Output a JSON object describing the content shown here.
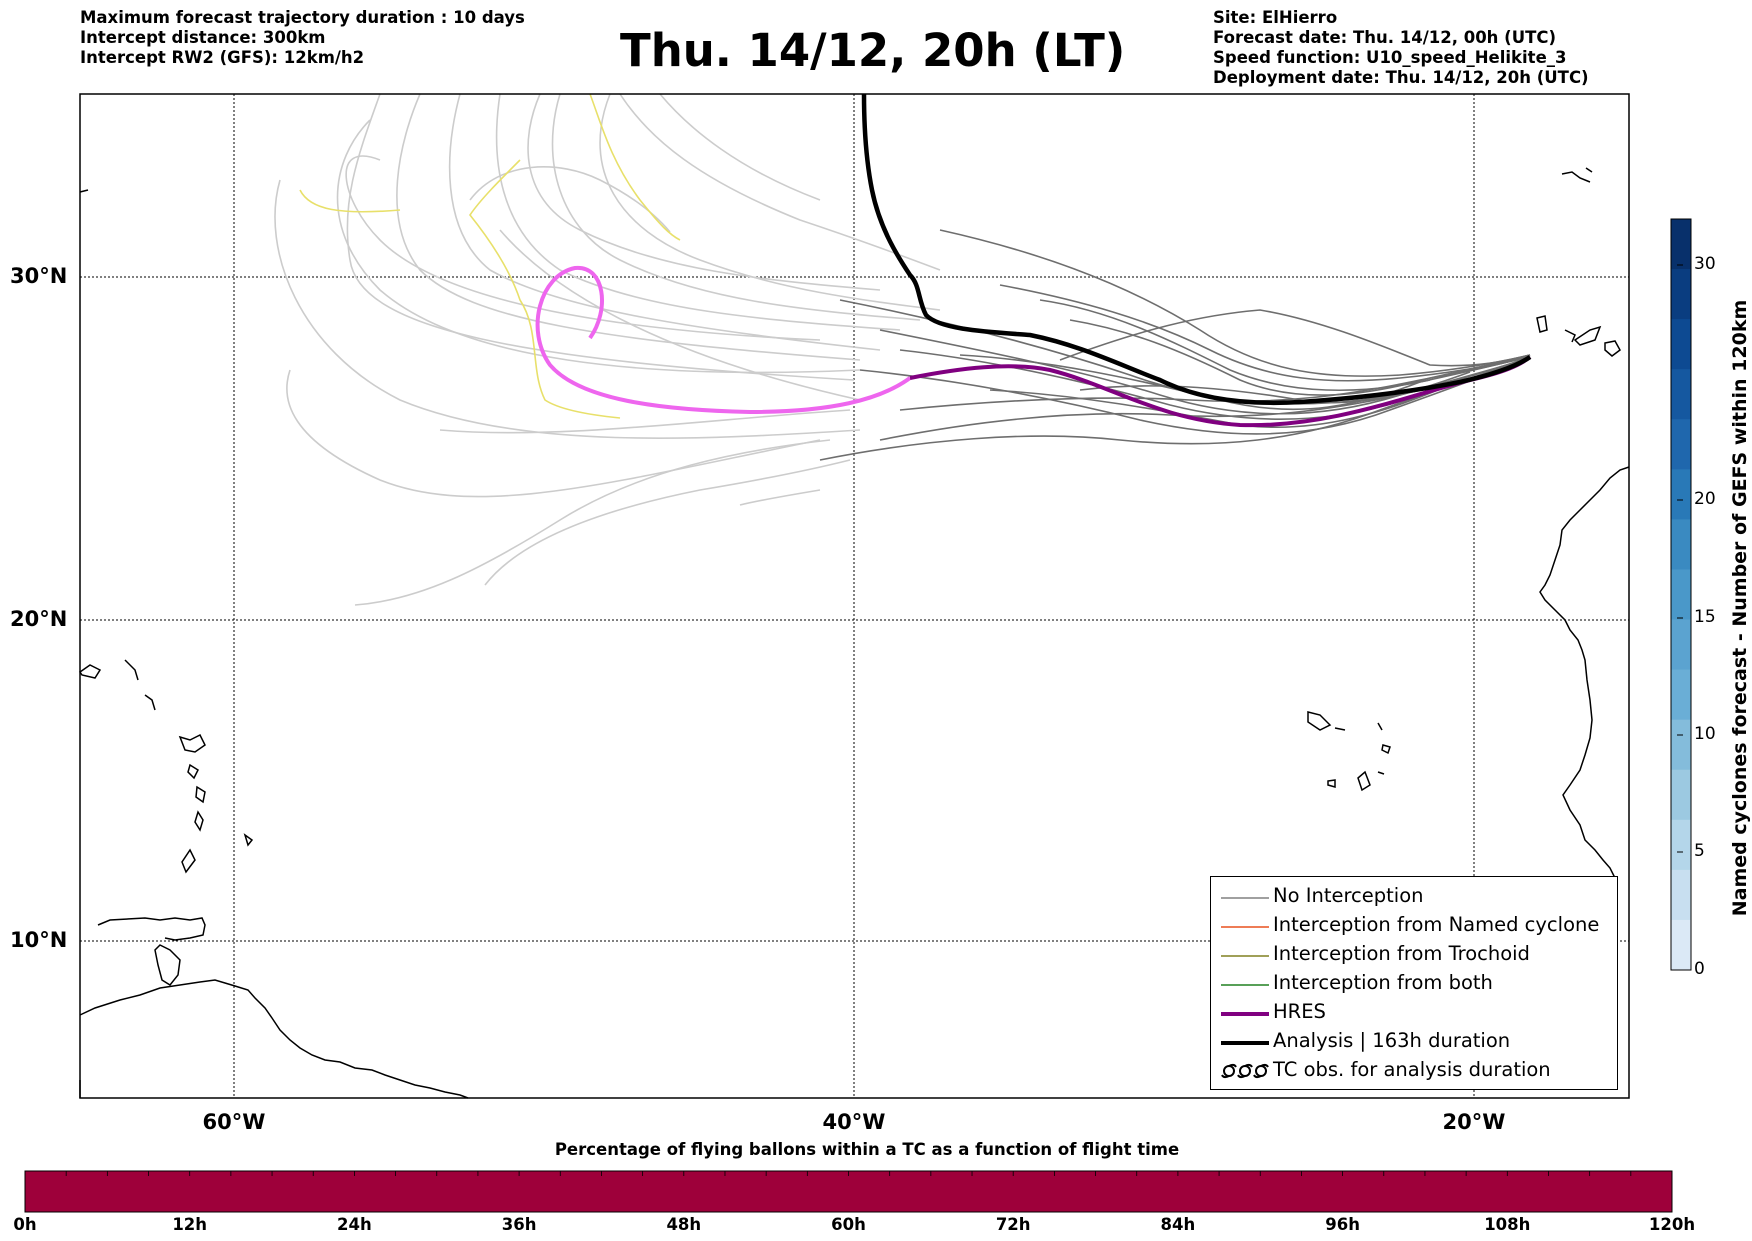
{
  "header": {
    "left_lines": [
      "Maximum forecast trajectory duration : 10 days",
      "Intercept distance: 300km",
      "Intercept RW2 (GFS):  12km/h2"
    ],
    "title": "Thu. 14/12, 20h (LT)",
    "right_lines": [
      "Site: ElHierro",
      "Forecast date: Thu. 14/12, 00h (UTC)",
      "Speed function: U10_speed_Helikite_3",
      "Deployment date: Thu. 14/12, 20h (UTC)"
    ]
  },
  "map": {
    "lat_labels": [
      "30°N",
      "20°N",
      "10°N"
    ],
    "lon_labels": [
      "60°W",
      "40°W",
      "20°W"
    ],
    "lat_range": [
      5.4,
      34.7
    ],
    "lon_range": [
      -65,
      -15
    ],
    "colors": {
      "ensemble_light": "#cccccc",
      "ensemble_dark": "#6e6e6e",
      "ensemble_yellow": "#e8e06a",
      "hres": "#800080",
      "hres_extension": "#ee66ee",
      "analysis": "#000000"
    }
  },
  "legend": {
    "items": [
      {
        "label": "No Interception",
        "color": "#808080",
        "width": 1.5,
        "symbol": "line"
      },
      {
        "label": "Interception from Named cyclone",
        "color": "#e8501e",
        "width": 1.5,
        "symbol": "line"
      },
      {
        "label": "Interception from Trochoid",
        "color": "#808020",
        "width": 1.5,
        "symbol": "line"
      },
      {
        "label": "Interception from both",
        "color": "#208020",
        "width": 1.5,
        "symbol": "line"
      },
      {
        "label": "HRES",
        "color": "#800080",
        "width": 4,
        "symbol": "line"
      },
      {
        "label": "Analysis | 163h duration",
        "color": "#000000",
        "width": 4,
        "symbol": "line"
      },
      {
        "label": "TC obs. for analysis duration",
        "color": "#000000",
        "width": 2,
        "symbol": "cyclone"
      }
    ]
  },
  "colorbar": {
    "title": "Named cyclones forecast - Number of GEFS within 120km",
    "ticks": [
      "0",
      "5",
      "10",
      "15",
      "20",
      "30"
    ],
    "colors_top_to_bottom": [
      "#08306b",
      "#0a3d80",
      "#0d4a92",
      "#1558a0",
      "#1f67ad",
      "#2979b7",
      "#3a8ac1",
      "#4a98c9",
      "#5ba3d0",
      "#6aaed6",
      "#84bcdb",
      "#9cc9e1",
      "#b4d6ea",
      "#c8dff0",
      "#dbe9f6"
    ]
  },
  "time_bar": {
    "title": "Percentage of flying ballons within a TC as a function of flight time",
    "color": "#9e003a",
    "ticks": [
      "0h",
      "12h",
      "24h",
      "36h",
      "48h",
      "60h",
      "72h",
      "84h",
      "96h",
      "108h",
      "120h"
    ]
  }
}
